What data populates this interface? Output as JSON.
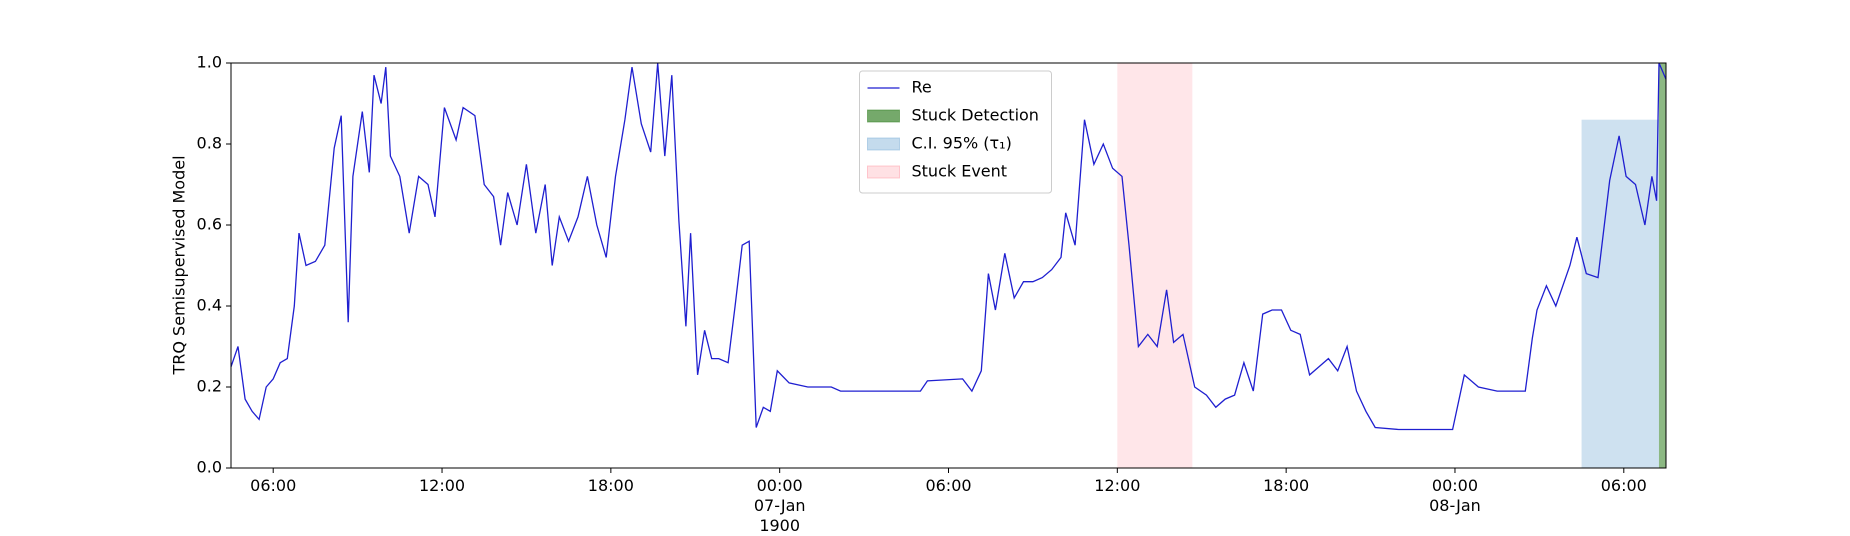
{
  "chart_data": {
    "type": "line",
    "ylabel": "TRQ Semisupervised Model",
    "x": [
      "1900-01-06 04:30",
      "1900-01-06 04:45",
      "1900-01-06 05:00",
      "1900-01-06 05:15",
      "1900-01-06 05:30",
      "1900-01-06 05:45",
      "1900-01-06 06:00",
      "1900-01-06 06:15",
      "1900-01-06 06:30",
      "1900-01-06 06:45",
      "1900-01-06 06:55",
      "1900-01-06 07:10",
      "1900-01-06 07:30",
      "1900-01-06 07:50",
      "1900-01-06 08:10",
      "1900-01-06 08:25",
      "1900-01-06 08:40",
      "1900-01-06 08:50",
      "1900-01-06 09:10",
      "1900-01-06 09:25",
      "1900-01-06 09:35",
      "1900-01-06 09:50",
      "1900-01-06 10:00",
      "1900-01-06 10:10",
      "1900-01-06 10:30",
      "1900-01-06 10:50",
      "1900-01-06 11:10",
      "1900-01-06 11:30",
      "1900-01-06 11:45",
      "1900-01-06 12:05",
      "1900-01-06 12:30",
      "1900-01-06 12:45",
      "1900-01-06 13:10",
      "1900-01-06 13:30",
      "1900-01-06 13:50",
      "1900-01-06 14:05",
      "1900-01-06 14:20",
      "1900-01-06 14:40",
      "1900-01-06 15:00",
      "1900-01-06 15:20",
      "1900-01-06 15:40",
      "1900-01-06 15:55",
      "1900-01-06 16:10",
      "1900-01-06 16:30",
      "1900-01-06 16:50",
      "1900-01-06 17:10",
      "1900-01-06 17:30",
      "1900-01-06 17:50",
      "1900-01-06 18:10",
      "1900-01-06 18:30",
      "1900-01-06 18:45",
      "1900-01-06 19:05",
      "1900-01-06 19:25",
      "1900-01-06 19:40",
      "1900-01-06 19:55",
      "1900-01-06 20:10",
      "1900-01-06 20:25",
      "1900-01-06 20:40",
      "1900-01-06 20:50",
      "1900-01-06 21:05",
      "1900-01-06 21:20",
      "1900-01-06 21:35",
      "1900-01-06 21:50",
      "1900-01-06 22:10",
      "1900-01-06 22:25",
      "1900-01-06 22:40",
      "1900-01-06 22:55",
      "1900-01-06 23:10",
      "1900-01-06 23:25",
      "1900-01-06 23:40",
      "1900-01-06 23:55",
      "1900-01-07 00:20",
      "1900-01-07 01:00",
      "1900-01-07 01:50",
      "1900-01-07 02:10",
      "1900-01-07 03:00",
      "1900-01-07 04:00",
      "1900-01-07 05:00",
      "1900-01-07 05:15",
      "1900-01-07 06:30",
      "1900-01-07 06:50",
      "1900-01-07 07:10",
      "1900-01-07 07:25",
      "1900-01-07 07:40",
      "1900-01-07 08:00",
      "1900-01-07 08:20",
      "1900-01-07 08:40",
      "1900-01-07 09:00",
      "1900-01-07 09:20",
      "1900-01-07 09:40",
      "1900-01-07 10:00",
      "1900-01-07 10:10",
      "1900-01-07 10:30",
      "1900-01-07 10:50",
      "1900-01-07 11:10",
      "1900-01-07 11:30",
      "1900-01-07 11:50",
      "1900-01-07 12:10",
      "1900-01-07 12:25",
      "1900-01-07 12:45",
      "1900-01-07 13:05",
      "1900-01-07 13:25",
      "1900-01-07 13:45",
      "1900-01-07 14:00",
      "1900-01-07 14:20",
      "1900-01-07 14:45",
      "1900-01-07 15:10",
      "1900-01-07 15:30",
      "1900-01-07 15:50",
      "1900-01-07 16:10",
      "1900-01-07 16:30",
      "1900-01-07 16:50",
      "1900-01-07 17:10",
      "1900-01-07 17:30",
      "1900-01-07 17:50",
      "1900-01-07 18:10",
      "1900-01-07 18:30",
      "1900-01-07 18:50",
      "1900-01-07 19:10",
      "1900-01-07 19:30",
      "1900-01-07 19:50",
      "1900-01-07 20:10",
      "1900-01-07 20:30",
      "1900-01-07 20:50",
      "1900-01-07 21:10",
      "1900-01-07 22:00",
      "1900-01-07 23:00",
      "1900-01-07 23:55",
      "1900-01-08 00:20",
      "1900-01-08 00:50",
      "1900-01-08 01:30",
      "1900-01-08 02:30",
      "1900-01-08 02:45",
      "1900-01-08 02:55",
      "1900-01-08 03:15",
      "1900-01-08 03:35",
      "1900-01-08 04:05",
      "1900-01-08 04:20",
      "1900-01-08 04:40",
      "1900-01-08 05:05",
      "1900-01-08 05:30",
      "1900-01-08 05:50",
      "1900-01-08 06:05",
      "1900-01-08 06:25",
      "1900-01-08 06:45",
      "1900-01-08 07:00",
      "1900-01-08 07:10",
      "1900-01-08 07:15",
      "1900-01-08 07:30"
    ],
    "series": [
      {
        "name": "Re",
        "color": "#1f1fd0",
        "values": [
          0.25,
          0.3,
          0.17,
          0.14,
          0.12,
          0.2,
          0.22,
          0.26,
          0.27,
          0.4,
          0.58,
          0.5,
          0.51,
          0.55,
          0.79,
          0.87,
          0.36,
          0.72,
          0.88,
          0.73,
          0.97,
          0.9,
          0.99,
          0.77,
          0.72,
          0.58,
          0.72,
          0.7,
          0.62,
          0.89,
          0.81,
          0.89,
          0.87,
          0.7,
          0.67,
          0.55,
          0.68,
          0.6,
          0.75,
          0.58,
          0.7,
          0.5,
          0.62,
          0.56,
          0.62,
          0.72,
          0.6,
          0.52,
          0.72,
          0.86,
          0.99,
          0.85,
          0.78,
          1.0,
          0.77,
          0.97,
          0.61,
          0.35,
          0.58,
          0.23,
          0.34,
          0.27,
          0.27,
          0.26,
          0.4,
          0.55,
          0.56,
          0.1,
          0.15,
          0.14,
          0.24,
          0.21,
          0.2,
          0.2,
          0.19,
          0.19,
          0.19,
          0.19,
          0.215,
          0.22,
          0.19,
          0.24,
          0.48,
          0.39,
          0.53,
          0.42,
          0.46,
          0.46,
          0.47,
          0.49,
          0.52,
          0.63,
          0.55,
          0.86,
          0.75,
          0.8,
          0.74,
          0.72,
          0.55,
          0.3,
          0.33,
          0.3,
          0.44,
          0.31,
          0.33,
          0.2,
          0.18,
          0.15,
          0.17,
          0.18,
          0.26,
          0.19,
          0.38,
          0.39,
          0.39,
          0.34,
          0.33,
          0.23,
          0.25,
          0.27,
          0.24,
          0.3,
          0.19,
          0.14,
          0.1,
          0.095,
          0.095,
          0.095,
          0.23,
          0.2,
          0.19,
          0.19,
          0.32,
          0.39,
          0.45,
          0.4,
          0.5,
          0.57,
          0.48,
          0.47,
          0.71,
          0.82,
          0.72,
          0.7,
          0.6,
          0.72,
          0.66,
          1.0,
          0.96
        ]
      }
    ],
    "spans": [
      {
        "name": "Stuck Detection",
        "color": "#2e7d1e",
        "opacity": 0.55,
        "x": [
          "1900-01-08 07:15",
          "1900-01-08 07:30"
        ],
        "y": [
          0,
          1
        ]
      },
      {
        "name": "C.I. 95% (τ₁)",
        "color": "#7eb0d8",
        "opacity": 0.38,
        "x": [
          "1900-01-08 04:30",
          "1900-01-08 07:15"
        ],
        "y": [
          0,
          0.86
        ]
      },
      {
        "name": "Stuck Event",
        "color": "#ff9aa6",
        "opacity": 0.25,
        "x": [
          "1900-01-07 12:00",
          "1900-01-07 14:40"
        ],
        "y": [
          0,
          1
        ]
      }
    ],
    "xlim": [
      "1900-01-06 04:30",
      "1900-01-08 07:30"
    ],
    "xticks": [
      {
        "value": "1900-01-06 06:00",
        "label": "06:00"
      },
      {
        "value": "1900-01-06 12:00",
        "label": "12:00"
      },
      {
        "value": "1900-01-06 18:00",
        "label": "18:00"
      },
      {
        "value": "1900-01-07 00:00",
        "label": "00:00\n07-Jan\n1900"
      },
      {
        "value": "1900-01-07 06:00",
        "label": "06:00"
      },
      {
        "value": "1900-01-07 12:00",
        "label": "12:00"
      },
      {
        "value": "1900-01-07 18:00",
        "label": "18:00"
      },
      {
        "value": "1900-01-08 00:00",
        "label": "00:00\n08-Jan"
      },
      {
        "value": "1900-01-08 06:00",
        "label": "06:00"
      }
    ],
    "ylim": [
      0,
      1
    ],
    "yticks": [
      {
        "value": 0,
        "label": "0.0"
      },
      {
        "value": 0.2,
        "label": "0.2"
      },
      {
        "value": 0.4,
        "label": "0.4"
      },
      {
        "value": 0.6,
        "label": "0.6"
      },
      {
        "value": 0.8,
        "label": "0.8"
      },
      {
        "value": 1,
        "label": "1.0"
      }
    ],
    "grid": false,
    "legend": "upper center"
  }
}
